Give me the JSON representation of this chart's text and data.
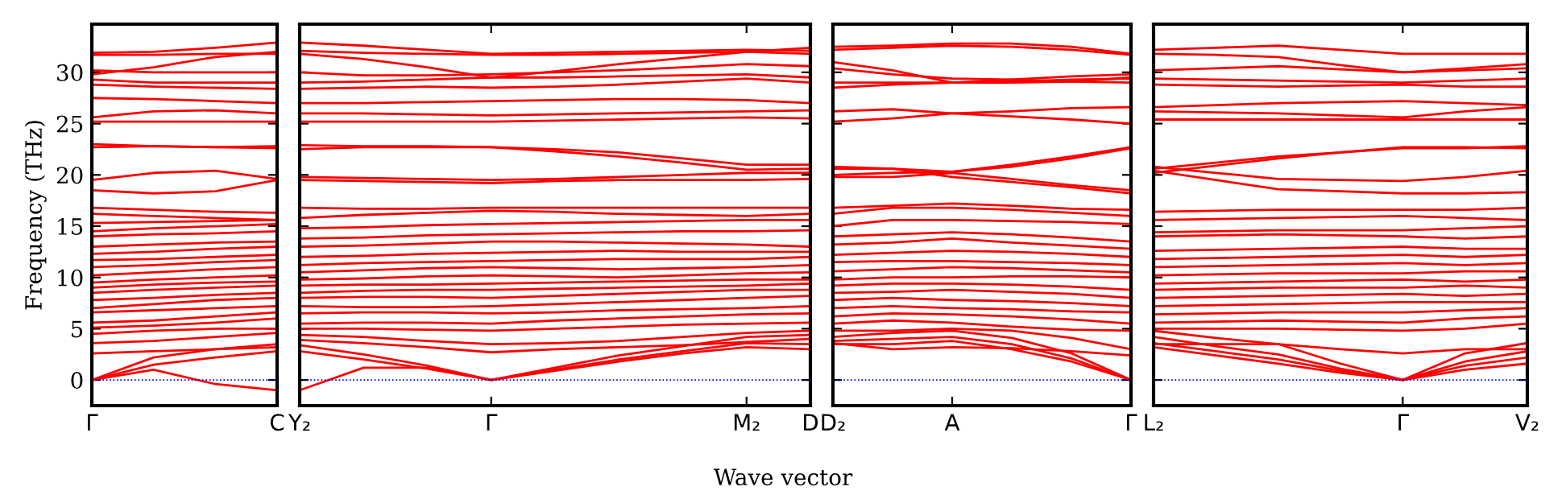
{
  "chart_data": [
    {
      "type": "line",
      "ylabel": "Frequency (THz)",
      "color": "#ff0000",
      "line_style": "solid",
      "marker": "none",
      "ylim": [
        -2.5,
        34.7
      ],
      "yticks": [
        0,
        5,
        10,
        15,
        20,
        25,
        30
      ],
      "ref_lines": [
        {
          "axis": "y",
          "value": 0,
          "color": "#0000ff",
          "line_style": "dotted"
        }
      ],
      "categories": [
        "Γ",
        null,
        null,
        "C"
      ],
      "series": [
        {
          "values": [
            0,
            1.0,
            -0.4,
            -1.0
          ]
        },
        {
          "values": [
            0,
            2.2,
            3.0,
            3.5
          ]
        },
        {
          "values": [
            0,
            1.5,
            2.2,
            2.8
          ]
        },
        {
          "values": [
            2.6,
            2.8,
            3.0,
            3.2
          ]
        },
        {
          "values": [
            3.6,
            3.8,
            4.2,
            4.6
          ]
        },
        {
          "values": [
            4.5,
            4.8,
            5.0,
            5.0
          ]
        },
        {
          "values": [
            5.1,
            5.3,
            5.6,
            6.0
          ]
        },
        {
          "values": [
            5.6,
            5.8,
            6.2,
            6.6
          ]
        },
        {
          "values": [
            6.6,
            6.8,
            7.0,
            7.2
          ]
        },
        {
          "values": [
            7.0,
            7.4,
            7.8,
            8.0
          ]
        },
        {
          "values": [
            7.8,
            8.0,
            8.3,
            8.5
          ]
        },
        {
          "values": [
            8.5,
            8.8,
            9.0,
            9.2
          ]
        },
        {
          "values": [
            9.0,
            9.3,
            9.5,
            9.6
          ]
        },
        {
          "values": [
            9.5,
            9.8,
            10.0,
            10.2
          ]
        },
        {
          "values": [
            10.2,
            10.5,
            10.8,
            11.0
          ]
        },
        {
          "values": [
            11.0,
            11.2,
            11.5,
            11.7
          ]
        },
        {
          "values": [
            11.7,
            11.8,
            12.0,
            12.2
          ]
        },
        {
          "values": [
            12.3,
            12.5,
            12.8,
            13.0
          ]
        },
        {
          "values": [
            13.0,
            13.2,
            13.4,
            13.5
          ]
        },
        {
          "values": [
            14.0,
            14.2,
            14.3,
            14.5
          ]
        },
        {
          "values": [
            14.5,
            14.8,
            15.0,
            15.2
          ]
        },
        {
          "values": [
            15.3,
            15.4,
            15.5,
            15.6
          ]
        },
        {
          "values": [
            16.2,
            16.0,
            15.8,
            15.6
          ]
        },
        {
          "values": [
            16.8,
            16.6,
            16.4,
            16.3
          ]
        },
        {
          "values": [
            18.5,
            18.2,
            18.4,
            19.5
          ]
        },
        {
          "values": [
            19.5,
            20.2,
            20.4,
            19.6
          ]
        },
        {
          "values": [
            22.7,
            22.8,
            22.7,
            22.6
          ]
        },
        {
          "values": [
            23.0,
            22.8,
            22.7,
            22.8
          ]
        },
        {
          "values": [
            25.2,
            25.2,
            25.2,
            25.2
          ]
        },
        {
          "values": [
            25.6,
            26.2,
            26.3,
            26.0
          ]
        },
        {
          "values": [
            27.5,
            27.4,
            27.2,
            27.0
          ]
        },
        {
          "values": [
            28.8,
            28.6,
            28.5,
            28.4
          ]
        },
        {
          "values": [
            29.3,
            29.0,
            29.0,
            29.0
          ]
        },
        {
          "values": [
            29.8,
            30.5,
            31.5,
            32.0
          ]
        },
        {
          "values": [
            30.2,
            30.0,
            30.0,
            30.0
          ]
        },
        {
          "values": [
            31.7,
            31.7,
            31.8,
            31.8
          ]
        },
        {
          "values": [
            31.9,
            32.0,
            32.4,
            32.9
          ]
        }
      ]
    },
    {
      "type": "line",
      "xlabel": "Wave vector",
      "color": "#ff0000",
      "line_style": "solid",
      "marker": "none",
      "tick_labels": "x",
      "ylim": [
        -2.5,
        34.7
      ],
      "yticks": [
        {
          "value": 0,
          "label": null
        },
        {
          "value": 5,
          "label": null
        },
        {
          "value": 10,
          "label": null
        },
        {
          "value": 15,
          "label": null
        },
        {
          "value": 20,
          "label": null
        },
        {
          "value": 25,
          "label": null
        },
        {
          "value": 30,
          "label": null
        }
      ],
      "ref_lines": [
        {
          "axis": "y",
          "value": 0,
          "color": "#0000ff",
          "line_style": "dotted"
        }
      ],
      "categories": [
        "Y₂",
        null,
        null,
        "Γ",
        null,
        null,
        null,
        "M₂",
        "D"
      ],
      "series": [
        {
          "values": [
            -1.0,
            1.2,
            1.2,
            0,
            0.9,
            1.8,
            2.6,
            3.2,
            3.0
          ]
        },
        {
          "values": [
            2.8,
            2.0,
            1.1,
            0,
            1.0,
            2.0,
            2.8,
            3.6,
            3.5
          ]
        },
        {
          "values": [
            3.4,
            2.5,
            1.4,
            0,
            1.2,
            2.4,
            3.3,
            4.2,
            4.4
          ]
        },
        {
          "values": [
            3.9,
            3.6,
            3.2,
            2.7,
            3.0,
            3.2,
            3.4,
            3.7,
            4.0
          ]
        },
        {
          "values": [
            4.4,
            4.2,
            3.8,
            3.5,
            3.6,
            3.8,
            4.2,
            4.6,
            4.8
          ]
        },
        {
          "values": [
            5.0,
            5.0,
            4.9,
            4.8,
            5.0,
            5.2,
            5.4,
            5.5,
            5.6
          ]
        },
        {
          "values": [
            5.5,
            5.6,
            5.6,
            5.5,
            5.8,
            6.0,
            6.2,
            6.4,
            6.5
          ]
        },
        {
          "values": [
            6.5,
            6.6,
            6.6,
            6.5,
            6.6,
            6.8,
            6.9,
            7.0,
            7.2
          ]
        },
        {
          "values": [
            7.2,
            7.1,
            7.1,
            7.2,
            7.4,
            7.6,
            7.8,
            8.0,
            8.2
          ]
        },
        {
          "values": [
            8.0,
            8.1,
            8.1,
            8.0,
            8.2,
            8.4,
            8.6,
            8.8,
            8.8
          ]
        },
        {
          "values": [
            8.5,
            8.7,
            8.8,
            8.8,
            8.9,
            9.0,
            9.1,
            9.2,
            9.4
          ]
        },
        {
          "values": [
            9.2,
            9.3,
            9.3,
            9.4,
            9.5,
            9.6,
            9.7,
            9.8,
            9.8
          ]
        },
        {
          "values": [
            9.8,
            9.9,
            10.1,
            10.2,
            10.1,
            10.0,
            10.2,
            10.4,
            10.5
          ]
        },
        {
          "values": [
            10.5,
            10.7,
            10.9,
            11.0,
            10.9,
            10.8,
            10.9,
            11.0,
            11.2
          ]
        },
        {
          "values": [
            11.2,
            11.4,
            11.5,
            11.6,
            11.7,
            11.8,
            11.8,
            11.8,
            12.0
          ]
        },
        {
          "values": [
            12.0,
            12.1,
            12.3,
            12.4,
            12.5,
            12.6,
            12.5,
            12.5,
            12.5
          ]
        },
        {
          "values": [
            13.0,
            13.1,
            13.3,
            13.5,
            13.5,
            13.4,
            13.3,
            13.2,
            13.0
          ]
        },
        {
          "values": [
            13.8,
            13.9,
            14.1,
            14.2,
            14.3,
            14.4,
            14.5,
            14.5,
            14.6
          ]
        },
        {
          "values": [
            14.8,
            14.9,
            15.1,
            15.2,
            15.3,
            15.4,
            15.5,
            15.6,
            15.6
          ]
        },
        {
          "values": [
            15.8,
            16.1,
            16.3,
            16.5,
            16.4,
            16.2,
            16.1,
            16.0,
            16.2
          ]
        },
        {
          "values": [
            16.8,
            16.7,
            16.7,
            16.8,
            16.8,
            16.8,
            16.8,
            16.8,
            16.8
          ]
        },
        {
          "values": [
            19.5,
            19.4,
            19.3,
            19.2,
            19.4,
            19.5,
            19.5,
            19.5,
            19.6
          ]
        },
        {
          "values": [
            19.8,
            19.7,
            19.6,
            19.5,
            19.6,
            19.8,
            20.0,
            20.2,
            20.2
          ]
        },
        {
          "values": [
            22.5,
            22.7,
            22.7,
            22.7,
            22.5,
            22.2,
            21.6,
            21.0,
            21.0
          ]
        },
        {
          "values": [
            22.9,
            22.8,
            22.8,
            22.7,
            22.3,
            21.8,
            21.2,
            20.5,
            20.6
          ]
        },
        {
          "values": [
            25.2,
            25.2,
            25.2,
            25.2,
            25.3,
            25.4,
            25.5,
            25.6,
            25.5
          ]
        },
        {
          "values": [
            26.0,
            26.0,
            25.9,
            25.8,
            25.9,
            26.0,
            26.1,
            26.2,
            26.3
          ]
        },
        {
          "values": [
            27.0,
            27.0,
            27.1,
            27.2,
            27.3,
            27.4,
            27.4,
            27.3,
            27.0
          ]
        },
        {
          "values": [
            28.4,
            28.5,
            28.6,
            28.5,
            28.6,
            28.8,
            29.1,
            29.4,
            29.0
          ]
        },
        {
          "values": [
            29.0,
            29.1,
            29.3,
            29.5,
            29.5,
            29.6,
            29.7,
            29.8,
            29.5
          ]
        },
        {
          "values": [
            30.0,
            29.7,
            29.7,
            29.8,
            30.0,
            30.2,
            30.5,
            30.8,
            30.6
          ]
        },
        {
          "values": [
            31.8,
            31.3,
            30.5,
            29.5,
            30.1,
            30.8,
            31.4,
            32.0,
            32.4
          ]
        },
        {
          "values": [
            32.9,
            32.6,
            32.2,
            31.8,
            31.9,
            32.0,
            32.1,
            32.2,
            32.1
          ]
        },
        {
          "values": [
            32.1,
            31.9,
            31.8,
            31.7,
            31.7,
            31.8,
            31.9,
            32.0,
            31.8
          ]
        }
      ]
    },
    {
      "type": "line",
      "color": "#ff0000",
      "line_style": "solid",
      "marker": "none",
      "tick_labels": "x",
      "ylim": [
        -2.5,
        34.7
      ],
      "yticks": [
        {
          "value": 0,
          "label": null
        },
        {
          "value": 5,
          "label": null
        },
        {
          "value": 10,
          "label": null
        },
        {
          "value": 15,
          "label": null
        },
        {
          "value": 20,
          "label": null
        },
        {
          "value": 25,
          "label": null
        },
        {
          "value": 30,
          "label": null
        }
      ],
      "ref_lines": [
        {
          "axis": "y",
          "value": 0,
          "color": "#0000ff",
          "line_style": "dotted"
        }
      ],
      "categories": [
        "D₂",
        null,
        "A",
        null,
        null,
        "Γ"
      ],
      "series": [
        {
          "values": [
            3.5,
            3.5,
            3.8,
            3.0,
            1.8,
            0
          ]
        },
        {
          "values": [
            3.8,
            4.0,
            4.2,
            3.5,
            2.1,
            0
          ]
        },
        {
          "values": [
            4.2,
            4.6,
            4.8,
            4.1,
            2.6,
            0
          ]
        },
        {
          "values": [
            3.6,
            3.0,
            3.2,
            3.1,
            2.8,
            2.4
          ]
        },
        {
          "values": [
            4.8,
            4.8,
            5.0,
            4.8,
            4.1,
            3.0
          ]
        },
        {
          "values": [
            5.5,
            5.8,
            5.6,
            5.2,
            4.9,
            4.8
          ]
        },
        {
          "values": [
            6.2,
            6.5,
            6.4,
            6.2,
            5.9,
            5.5
          ]
        },
        {
          "values": [
            7.0,
            7.2,
            7.0,
            6.9,
            6.7,
            6.6
          ]
        },
        {
          "values": [
            7.8,
            8.0,
            7.8,
            7.7,
            7.5,
            7.2
          ]
        },
        {
          "values": [
            8.5,
            8.6,
            8.8,
            8.6,
            8.4,
            8.0
          ]
        },
        {
          "values": [
            9.2,
            9.4,
            9.4,
            9.3,
            9.1,
            8.8
          ]
        },
        {
          "values": [
            9.8,
            10.0,
            10.0,
            10.1,
            10.1,
            10.0
          ]
        },
        {
          "values": [
            10.6,
            10.8,
            11.0,
            10.9,
            10.7,
            10.5
          ]
        },
        {
          "values": [
            11.5,
            11.6,
            11.6,
            11.5,
            11.4,
            11.2
          ]
        },
        {
          "values": [
            12.2,
            12.4,
            12.6,
            12.5,
            12.3,
            12.0
          ]
        },
        {
          "values": [
            13.2,
            13.4,
            13.8,
            13.4,
            13.1,
            12.8
          ]
        },
        {
          "values": [
            14.0,
            14.2,
            14.4,
            14.2,
            13.9,
            13.5
          ]
        },
        {
          "values": [
            15.0,
            15.6,
            15.6,
            15.5,
            15.4,
            15.2
          ]
        },
        {
          "values": [
            16.2,
            16.8,
            16.8,
            16.6,
            16.3,
            16.0
          ]
        },
        {
          "values": [
            16.8,
            17.0,
            17.2,
            17.0,
            16.7,
            16.6
          ]
        },
        {
          "values": [
            19.8,
            19.8,
            20.2,
            19.6,
            19.0,
            18.5
          ]
        },
        {
          "values": [
            20.0,
            20.2,
            20.3,
            21.0,
            21.8,
            22.7
          ]
        },
        {
          "values": [
            20.6,
            20.6,
            20.3,
            20.8,
            21.6,
            22.6
          ]
        },
        {
          "values": [
            20.8,
            20.6,
            19.8,
            19.3,
            18.8,
            18.2
          ]
        },
        {
          "values": [
            25.2,
            25.5,
            26.0,
            26.2,
            26.5,
            26.6
          ]
        },
        {
          "values": [
            26.2,
            26.4,
            26.0,
            25.7,
            25.4,
            25.0
          ]
        },
        {
          "values": [
            28.5,
            28.8,
            29.0,
            29.3,
            29.6,
            29.8
          ]
        },
        {
          "values": [
            29.0,
            29.0,
            29.0,
            29.1,
            29.3,
            29.4
          ]
        },
        {
          "values": [
            30.4,
            29.8,
            29.4,
            29.3,
            29.1,
            29.0
          ]
        },
        {
          "values": [
            31.0,
            30.2,
            29.0,
            29.0,
            29.1,
            29.5
          ]
        },
        {
          "values": [
            32.2,
            32.4,
            32.6,
            32.5,
            32.2,
            31.7
          ]
        },
        {
          "values": [
            32.5,
            32.6,
            32.8,
            32.8,
            32.5,
            31.8
          ]
        }
      ]
    },
    {
      "type": "line",
      "color": "#ff0000",
      "line_style": "solid",
      "marker": "none",
      "tick_labels": "x",
      "ylim": [
        -2.5,
        34.7
      ],
      "yticks": [
        {
          "value": 0,
          "label": null
        },
        {
          "value": 5,
          "label": null
        },
        {
          "value": 10,
          "label": null
        },
        {
          "value": 15,
          "label": null
        },
        {
          "value": 20,
          "label": null
        },
        {
          "value": 25,
          "label": null
        },
        {
          "value": 30,
          "label": null
        }
      ],
      "ref_lines": [
        {
          "axis": "y",
          "value": 0,
          "color": "#0000ff",
          "line_style": "dotted"
        }
      ],
      "categories": [
        "L₂",
        null,
        null,
        null,
        "Γ",
        null,
        "V₂"
      ],
      "series": [
        {
          "values": [
            3.2,
            2.4,
            1.6,
            0.7,
            0,
            1.0,
            1.6
          ]
        },
        {
          "values": [
            3.6,
            2.8,
            2.0,
            0.9,
            0,
            1.4,
            2.2
          ]
        },
        {
          "values": [
            4.2,
            3.3,
            2.5,
            1.1,
            0,
            1.8,
            2.8
          ]
        },
        {
          "values": [
            4.8,
            4.1,
            3.5,
            1.6,
            0,
            2.6,
            3.6
          ]
        },
        {
          "values": [
            3.5,
            3.5,
            3.5,
            3.0,
            2.6,
            3.0,
            3.0
          ]
        },
        {
          "values": [
            5.0,
            5.0,
            5.0,
            4.9,
            4.8,
            5.0,
            5.5
          ]
        },
        {
          "values": [
            5.6,
            5.7,
            5.8,
            5.7,
            5.6,
            6.0,
            6.2
          ]
        },
        {
          "values": [
            6.4,
            6.5,
            6.6,
            6.6,
            6.6,
            6.8,
            7.0
          ]
        },
        {
          "values": [
            7.2,
            7.3,
            7.4,
            7.5,
            7.6,
            7.6,
            7.6
          ]
        },
        {
          "values": [
            8.0,
            8.1,
            8.2,
            8.3,
            8.4,
            8.2,
            8.4
          ]
        },
        {
          "values": [
            8.8,
            8.9,
            9.0,
            9.0,
            9.0,
            9.2,
            9.0
          ]
        },
        {
          "values": [
            9.4,
            9.5,
            9.6,
            9.7,
            9.8,
            9.6,
            9.8
          ]
        },
        {
          "values": [
            10.2,
            10.3,
            10.4,
            10.4,
            10.4,
            10.6,
            10.6
          ]
        },
        {
          "values": [
            11.0,
            11.1,
            11.2,
            11.3,
            11.4,
            11.2,
            11.4
          ]
        },
        {
          "values": [
            11.8,
            11.9,
            12.0,
            12.1,
            12.2,
            12.0,
            12.2
          ]
        },
        {
          "values": [
            12.6,
            12.7,
            12.8,
            12.9,
            13.0,
            12.8,
            12.8
          ]
        },
        {
          "values": [
            14.0,
            14.1,
            14.2,
            14.1,
            14.0,
            13.8,
            14.0
          ]
        },
        {
          "values": [
            14.4,
            14.5,
            14.6,
            14.6,
            14.6,
            14.8,
            15.0
          ]
        },
        {
          "values": [
            15.6,
            15.7,
            15.8,
            15.9,
            16.0,
            15.8,
            15.6
          ]
        },
        {
          "values": [
            16.4,
            16.5,
            16.6,
            16.6,
            16.6,
            16.6,
            16.8
          ]
        },
        {
          "values": [
            20.2,
            20.9,
            21.6,
            22.2,
            22.7,
            22.7,
            22.6
          ]
        },
        {
          "values": [
            20.6,
            21.2,
            21.8,
            22.2,
            22.6,
            22.6,
            22.8
          ]
        },
        {
          "values": [
            20.8,
            20.2,
            19.6,
            19.5,
            19.4,
            19.8,
            20.4
          ]
        },
        {
          "values": [
            20.4,
            19.5,
            18.6,
            18.4,
            18.2,
            18.2,
            18.3
          ]
        },
        {
          "values": [
            25.4,
            25.4,
            25.4,
            25.4,
            25.4,
            25.4,
            25.4
          ]
        },
        {
          "values": [
            26.2,
            26.1,
            26.0,
            25.8,
            25.6,
            26.2,
            26.6
          ]
        },
        {
          "values": [
            26.6,
            26.8,
            27.0,
            27.1,
            27.2,
            27.0,
            26.8
          ]
        },
        {
          "values": [
            28.8,
            28.7,
            28.6,
            28.7,
            28.8,
            28.6,
            28.6
          ]
        },
        {
          "values": [
            29.4,
            29.3,
            29.2,
            29.1,
            29.0,
            29.2,
            29.4
          ]
        },
        {
          "values": [
            30.2,
            30.4,
            30.6,
            30.3,
            30.0,
            30.2,
            30.4
          ]
        },
        {
          "values": [
            32.2,
            32.4,
            32.6,
            32.2,
            31.8,
            31.8,
            31.8
          ]
        },
        {
          "values": [
            31.8,
            31.7,
            31.5,
            30.7,
            30.0,
            30.4,
            30.8
          ]
        }
      ]
    }
  ]
}
